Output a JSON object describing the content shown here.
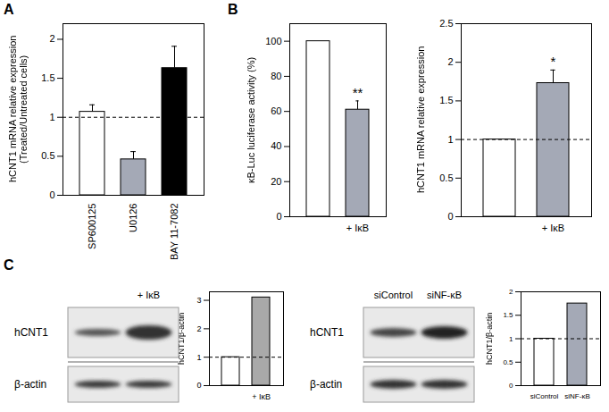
{
  "panels": [
    "A",
    "B",
    "C"
  ],
  "chart_data": [
    {
      "type": "bar",
      "ylabel": "hCNT1 mRNA relative expression\n(Treated/Untreated cells)",
      "categories": [
        "SP600125",
        "U0126",
        "BAY 11-7082"
      ],
      "values": [
        1.07,
        0.46,
        1.63
      ],
      "error": [
        0.09,
        0.1,
        0.28
      ],
      "colors": [
        "#ffffff",
        "#a4a9b6",
        "#000000"
      ],
      "reference": 1,
      "ylim": [
        0,
        2.2
      ],
      "yticks": [
        0,
        0.5,
        1,
        1.5,
        2
      ]
    },
    {
      "type": "bar",
      "ylabel": "κB-Luc luciferase activity (%)",
      "categories": [
        null,
        "+ IκB"
      ],
      "values": [
        100,
        61
      ],
      "error": [
        null,
        5
      ],
      "significance": [
        null,
        "**"
      ],
      "colors": [
        "#ffffff",
        "#a4a9b6"
      ],
      "ylim": [
        0,
        110
      ],
      "yticks": [
        0,
        20,
        40,
        60,
        80,
        100
      ]
    },
    {
      "type": "bar",
      "ylabel": "hCNT1 mRNA  relative expression",
      "categories": [
        null,
        "+ IκB"
      ],
      "values": [
        1,
        1.73
      ],
      "error": [
        null,
        0.17
      ],
      "significance": [
        null,
        "*"
      ],
      "colors": [
        "#ffffff",
        "#a4a9b6"
      ],
      "reference": 1,
      "ylim": [
        0,
        2.5
      ],
      "yticks": [
        0,
        0.5,
        1,
        1.5,
        2,
        2.5
      ]
    },
    {
      "type": "bar",
      "ylabel": "hCNT1/β-actin",
      "categories": [
        null,
        "+ IκB"
      ],
      "values": [
        1,
        3.1
      ],
      "colors": [
        "#ffffff",
        "#a9a9a9"
      ],
      "reference": 1,
      "ylim": [
        0,
        3.3
      ],
      "yticks": [
        0,
        1,
        2,
        3
      ]
    },
    {
      "type": "bar",
      "ylabel": "hCNT1/β-actin",
      "categories": [
        "siControl",
        "siNF-κB"
      ],
      "values": [
        1,
        1.75
      ],
      "colors": [
        "#ffffff",
        "#a4a9b6"
      ],
      "reference": 1,
      "ylim": [
        0,
        2
      ],
      "yticks": [
        0,
        0.5,
        1,
        1.5,
        2
      ]
    }
  ],
  "blots": [
    {
      "lanes": [
        null,
        "+ IκB"
      ],
      "rows": [
        "hCNT1",
        "β-actin"
      ]
    },
    {
      "lanes": [
        "siControl",
        "siNF-κB"
      ],
      "rows": [
        "hCNT1",
        "β-actin"
      ]
    }
  ]
}
